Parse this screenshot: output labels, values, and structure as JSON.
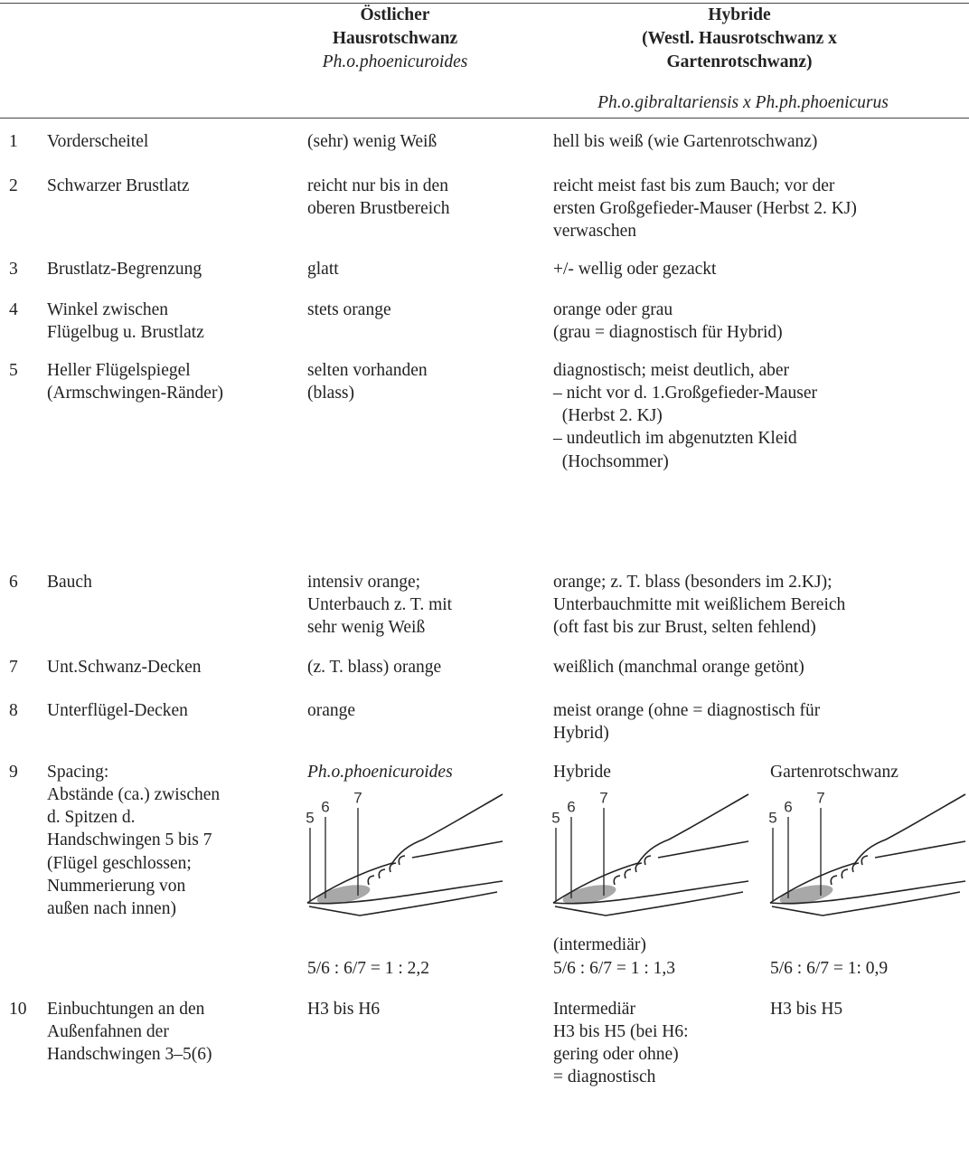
{
  "header": {
    "eastern": {
      "lines": [
        "Östlicher",
        "Hausrotschwanz"
      ],
      "latin": "Ph.o.phoenicuroides"
    },
    "hybrid": {
      "lines": [
        "Hybride",
        "(Westl. Hausrotschwanz x",
        "Gartenrotschwanz)"
      ],
      "latin": "Ph.o.gibraltariensis x Ph.ph.phoenicurus"
    }
  },
  "rows": [
    {
      "number": "1",
      "feature": [
        "Vorderscheitel"
      ],
      "eastern": [
        "(sehr) wenig Weiß"
      ],
      "hybrid": [
        "hell bis weiß (wie Gartenrotschwanz)"
      ]
    },
    {
      "number": "2",
      "feature": [
        "Schwarzer Brustlatz"
      ],
      "eastern": [
        "reicht nur bis in den",
        "oberen Brustbereich"
      ],
      "hybrid": [
        "reicht meist fast bis zum Bauch; vor der",
        "ersten Großgefieder-Mauser (Herbst 2. KJ)",
        "verwaschen"
      ]
    },
    {
      "number": "3",
      "feature": [
        "Brustlatz-Begrenzung"
      ],
      "eastern": [
        "glatt"
      ],
      "hybrid": [
        "+/- wellig oder gezackt"
      ]
    },
    {
      "number": "4",
      "feature": [
        "Winkel zwischen",
        "Flügelbug u. Brustlatz"
      ],
      "eastern": [
        "stets orange"
      ],
      "hybrid": [
        "orange oder grau",
        "(grau = diagnostisch für Hybrid)"
      ]
    },
    {
      "number": "5",
      "feature": [
        "Heller Flügelspiegel",
        "(Armschwingen-Ränder)"
      ],
      "eastern": [
        "selten vorhanden",
        "(blass)"
      ],
      "hybrid": [
        "diagnostisch; meist deutlich, aber",
        "– nicht vor d. 1.Großgefieder-Mauser",
        "  (Herbst 2. KJ)",
        "– undeutlich im abgenutzten Kleid",
        "  (Hochsommer)"
      ]
    },
    {
      "number": "6",
      "feature": [
        "Bauch"
      ],
      "eastern": [
        "intensiv orange;",
        "Unterbauch z. T. mit",
        "sehr wenig Weiß"
      ],
      "hybrid": [
        "orange; z. T. blass (besonders im 2.KJ);",
        "Unterbauchmitte mit weißlichem Bereich",
        "(oft fast bis zur Brust, selten fehlend)"
      ]
    },
    {
      "number": "7",
      "feature": [
        "Unt.Schwanz-Decken"
      ],
      "eastern": [
        "(z. T. blass) orange"
      ],
      "hybrid": [
        "weißlich (manchmal orange getönt)"
      ]
    },
    {
      "number": "8",
      "feature": [
        "Unterflügel-Decken"
      ],
      "eastern": [
        "orange"
      ],
      "hybrid": [
        "meist orange (ohne = diagnostisch für",
        "Hybrid)"
      ]
    },
    {
      "number": "9",
      "feature": [
        "Spacing:",
        "Abstände (ca.) zwischen",
        "d. Spitzen d.",
        "Handschwingen 5 bis 7",
        "(Flügel geschlossen;",
        "Nummerierung von",
        "außen nach innen)"
      ],
      "spacing": [
        {
          "label": "Ph.o.phoenicuroides",
          "numbers": [
            "5",
            "6",
            "7"
          ],
          "caption": [
            "5/6 : 6/7 = 1 : 2,2"
          ]
        },
        {
          "label": "Hybride",
          "numbers": [
            "5",
            "6",
            "7"
          ],
          "caption": [
            "(intermediär)",
            "5/6 : 6/7 = 1 : 1,3"
          ]
        },
        {
          "label": "Gartenrotschwanz",
          "numbers": [
            "5",
            "6",
            "7"
          ],
          "caption": [
            "5/6 : 6/7 = 1: 0,9"
          ]
        }
      ]
    },
    {
      "number": "10",
      "feature": [
        "Einbuchtungen an den",
        "Außenfahnen der",
        "Handschwingen 3–5(6)"
      ],
      "eastern": [
        "H3 bis H6"
      ],
      "hybrid": [
        "Intermediär",
        "H3 bis H5 (bei H6:",
        "gering oder ohne)",
        "= diagnostisch"
      ],
      "garden": [
        "H3 bis H5"
      ]
    }
  ]
}
